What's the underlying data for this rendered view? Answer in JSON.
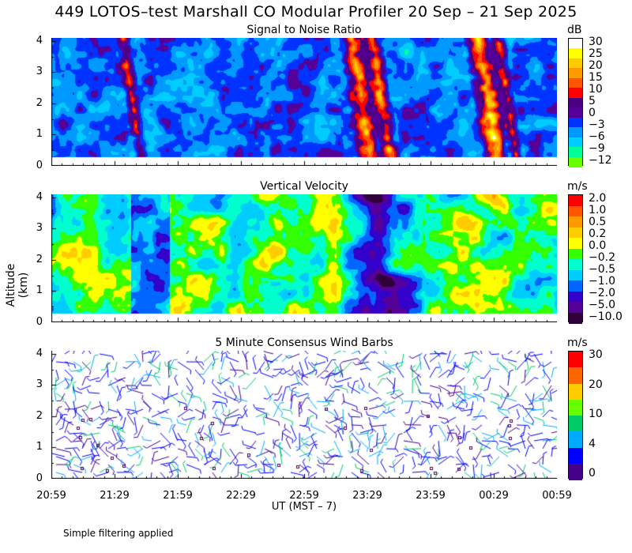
{
  "title": "449 LOTOS–test Marshall CO Modular Profiler 20 Sep – 21 Sep 2025",
  "y_axis_label": "Altitude (km)",
  "x_axis_label": "UT  (MST – 7)",
  "footer": "Simple filtering applied",
  "chart_data": [
    {
      "type": "heatmap",
      "title": "Signal to Noise Ratio",
      "unit": "dB",
      "x_ticks": [
        "20:59",
        "21:29",
        "21:59",
        "22:29",
        "22:59",
        "23:29",
        "23:59",
        "00:29",
        "00:59"
      ],
      "y_ticks": [
        0,
        1,
        2,
        3,
        4
      ],
      "ylim": [
        0,
        4.1
      ],
      "colorbar": {
        "labels": [
          "30",
          "25",
          "20",
          "15",
          "10",
          "5",
          "0",
          "−3",
          "−6",
          "−9",
          "−12"
        ],
        "colors": [
          "#ffffff",
          "#ffff00",
          "#ffcc00",
          "#ff9900",
          "#ff5500",
          "#ff0000",
          "#4b0082",
          "#550099",
          "#0033ff",
          "#0099ff",
          "#00ccff",
          "#00ff99",
          "#66ff00"
        ]
      },
      "description_features": [
        "data extends from ~0.3 km to ~4.1 km"
      ]
    },
    {
      "type": "heatmap",
      "title": "Vertical Velocity",
      "unit": "m/s",
      "x_ticks": [
        "20:59",
        "21:29",
        "21:59",
        "22:29",
        "22:59",
        "23:29",
        "23:59",
        "00:29",
        "00:59"
      ],
      "y_ticks": [
        0,
        1,
        2,
        3,
        4
      ],
      "ylim": [
        0,
        4.1
      ],
      "colorbar": {
        "labels": [
          "2.0",
          "1.0",
          "0.5",
          "0.2",
          "0.0",
          "−0.2",
          "−0.5",
          "−1.0",
          "−2.0",
          "−5.0",
          "−10.0"
        ],
        "colors": [
          "#ff0000",
          "#ff5500",
          "#ff9900",
          "#ffcc00",
          "#ffff00",
          "#33ff00",
          "#00ffcc",
          "#00ccff",
          "#0066ff",
          "#3300cc",
          "#550099",
          "#30003a"
        ]
      }
    },
    {
      "type": "scatter",
      "title": "5 Minute Consensus Wind Barbs",
      "unit": "m/s",
      "x_ticks": [
        "20:59",
        "21:29",
        "21:59",
        "22:29",
        "22:59",
        "23:29",
        "23:59",
        "00:29",
        "00:59"
      ],
      "y_ticks": [
        0,
        1,
        2,
        3,
        4
      ],
      "ylim": [
        0,
        4.1
      ],
      "colorbar": {
        "labels": [
          "30",
          "20",
          "10",
          "4",
          "0"
        ],
        "colors": [
          "#ff0000",
          "#ff6600",
          "#ffcc00",
          "#66ff00",
          "#00cc66",
          "#00aaff",
          "#0000ff",
          "#440088"
        ]
      }
    }
  ]
}
